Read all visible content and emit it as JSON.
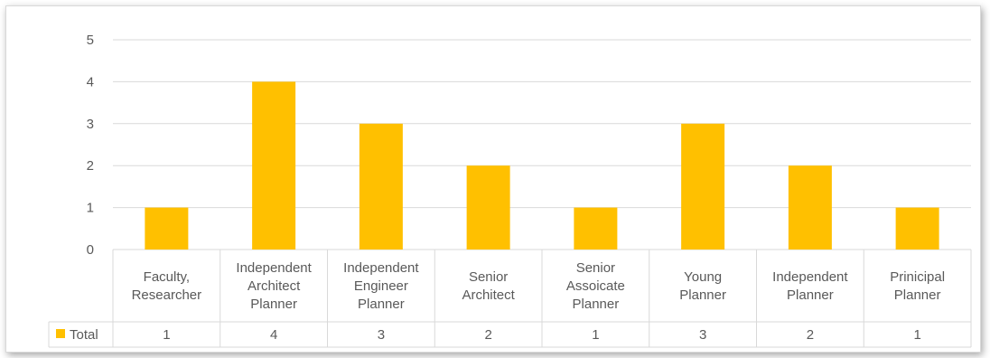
{
  "chart_data": {
    "type": "bar",
    "categories": [
      [
        "Faculty,",
        "Researcher"
      ],
      [
        "Independent",
        "Architect",
        "Planner"
      ],
      [
        "Independent",
        "Engineer",
        "Planner"
      ],
      [
        "Senior",
        "Architect"
      ],
      [
        "Senior",
        "Assoicate",
        "Planner"
      ],
      [
        "Young",
        "Planner"
      ],
      [
        "Independent",
        "Planner"
      ],
      [
        "Prinicipal",
        "Planner"
      ]
    ],
    "series": [
      {
        "name": "Total",
        "values": [
          1,
          4,
          3,
          2,
          1,
          3,
          2,
          1
        ],
        "color": "#FFC000"
      }
    ],
    "ylim": [
      0,
      5
    ],
    "yticks": [
      0,
      1,
      2,
      3,
      4,
      5
    ],
    "grid": true,
    "data_table": true,
    "legend": "data-table-left"
  }
}
